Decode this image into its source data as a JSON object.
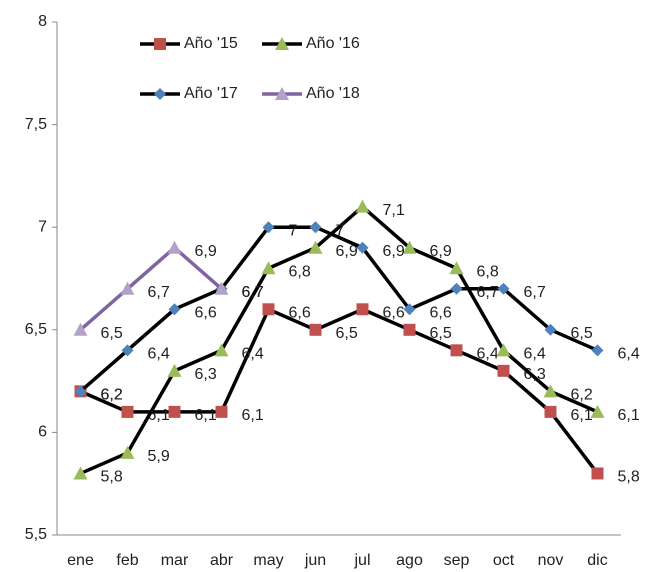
{
  "chart_data": {
    "type": "line",
    "categories": [
      "ene",
      "feb",
      "mar",
      "abr",
      "may",
      "jun",
      "jul",
      "ago",
      "sep",
      "oct",
      "nov",
      "dic"
    ],
    "ylim": [
      5.5,
      8
    ],
    "yticks": [
      {
        "value": 5.5,
        "label": "5,5"
      },
      6,
      {
        "value": 6.5,
        "label": "6,5"
      },
      7,
      {
        "value": 7.5,
        "label": "7,5"
      },
      8
    ],
    "grid": false,
    "series": [
      {
        "name": "Año '15",
        "color": "#000000",
        "marker": "square",
        "marker_color": "#c0504d",
        "values": [
          6.2,
          6.1,
          6.1,
          6.1,
          6.6,
          6.5,
          6.6,
          6.5,
          6.4,
          6.3,
          6.1,
          5.8
        ],
        "value_labels": [
          "6,2",
          "6,1",
          "6,1",
          "6,1",
          "6,6",
          "6,5",
          "6,6",
          "6,5",
          "6,4",
          "6,3",
          "6,1",
          "5,8"
        ]
      },
      {
        "name": "Año '16",
        "color": "#000000",
        "marker": "triangle",
        "marker_color": "#9bbb59",
        "values": [
          5.8,
          5.9,
          6.3,
          6.4,
          6.8,
          6.9,
          7.1,
          6.9,
          6.8,
          6.4,
          6.2,
          6.1
        ],
        "value_labels": [
          "5,8",
          "5,9",
          "6,3",
          "6,4",
          "6,8",
          "6,9",
          "7,1",
          "6,9",
          "6,8",
          "6,4",
          "6,2",
          "6,1"
        ]
      },
      {
        "name": "Año '17",
        "color": "#000000",
        "marker": "diamond",
        "marker_color": "#4f81bd",
        "values": [
          6.2,
          6.4,
          6.6,
          6.7,
          7,
          7,
          6.9,
          6.6,
          6.7,
          6.7,
          6.5,
          6.4
        ],
        "value_labels": [
          "6,2",
          "6,4",
          "6,6",
          "6,7",
          "7",
          "7",
          "6,9",
          "6,6",
          "6,7",
          "6,7",
          "6,5",
          "6,4"
        ]
      },
      {
        "name": "Año '18",
        "color": "#8064a2",
        "marker": "triangle",
        "marker_color": "#b3a2c7",
        "values": [
          6.5,
          6.7,
          6.9,
          6.7,
          null,
          null,
          null,
          null,
          null,
          null,
          null,
          null
        ],
        "value_labels": [
          "6,5",
          "6,7",
          "6,9",
          "6,7",
          null,
          null,
          null,
          null,
          null,
          null,
          null,
          null
        ]
      }
    ]
  }
}
